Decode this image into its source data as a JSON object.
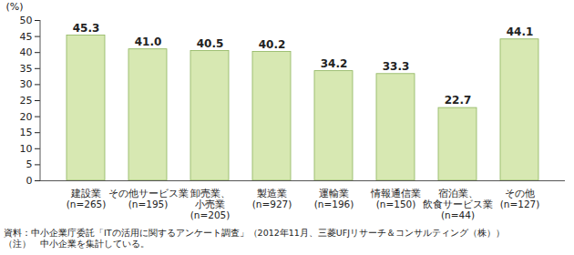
{
  "chart_data": {
    "type": "bar",
    "categories": [
      "建設業\n(n=265)",
      "その他サービス業\n(n=195)",
      "卸売業、\n小売業\n(n=205)",
      "製造業\n(n=927)",
      "運輸業\n(n=196)",
      "情報通信業\n(n=150)",
      "宿泊業、\n飲食サービス業\n(n=44)",
      "その他\n(n=127)"
    ],
    "values": [
      45.3,
      41.0,
      40.5,
      40.2,
      34.2,
      33.3,
      22.7,
      44.1
    ],
    "value_labels": [
      "45.3",
      "41.0",
      "40.5",
      "40.2",
      "34.2",
      "33.3",
      "22.7",
      "44.1"
    ],
    "data_labels": true,
    "color": "#d7e8b2",
    "y_label": "(%)",
    "ylim": [
      0,
      50
    ],
    "yticks": [
      0,
      5,
      10,
      15,
      20,
      25,
      30,
      35,
      40,
      45,
      50
    ],
    "grid": false,
    "caption": [
      "資料：中小企業庁委託「ITの活用に関するアンケート調査」（2012年11月、三菱UFJリサーチ＆コンサルティング（株））",
      "（注）　中小企業を集計している。"
    ]
  }
}
